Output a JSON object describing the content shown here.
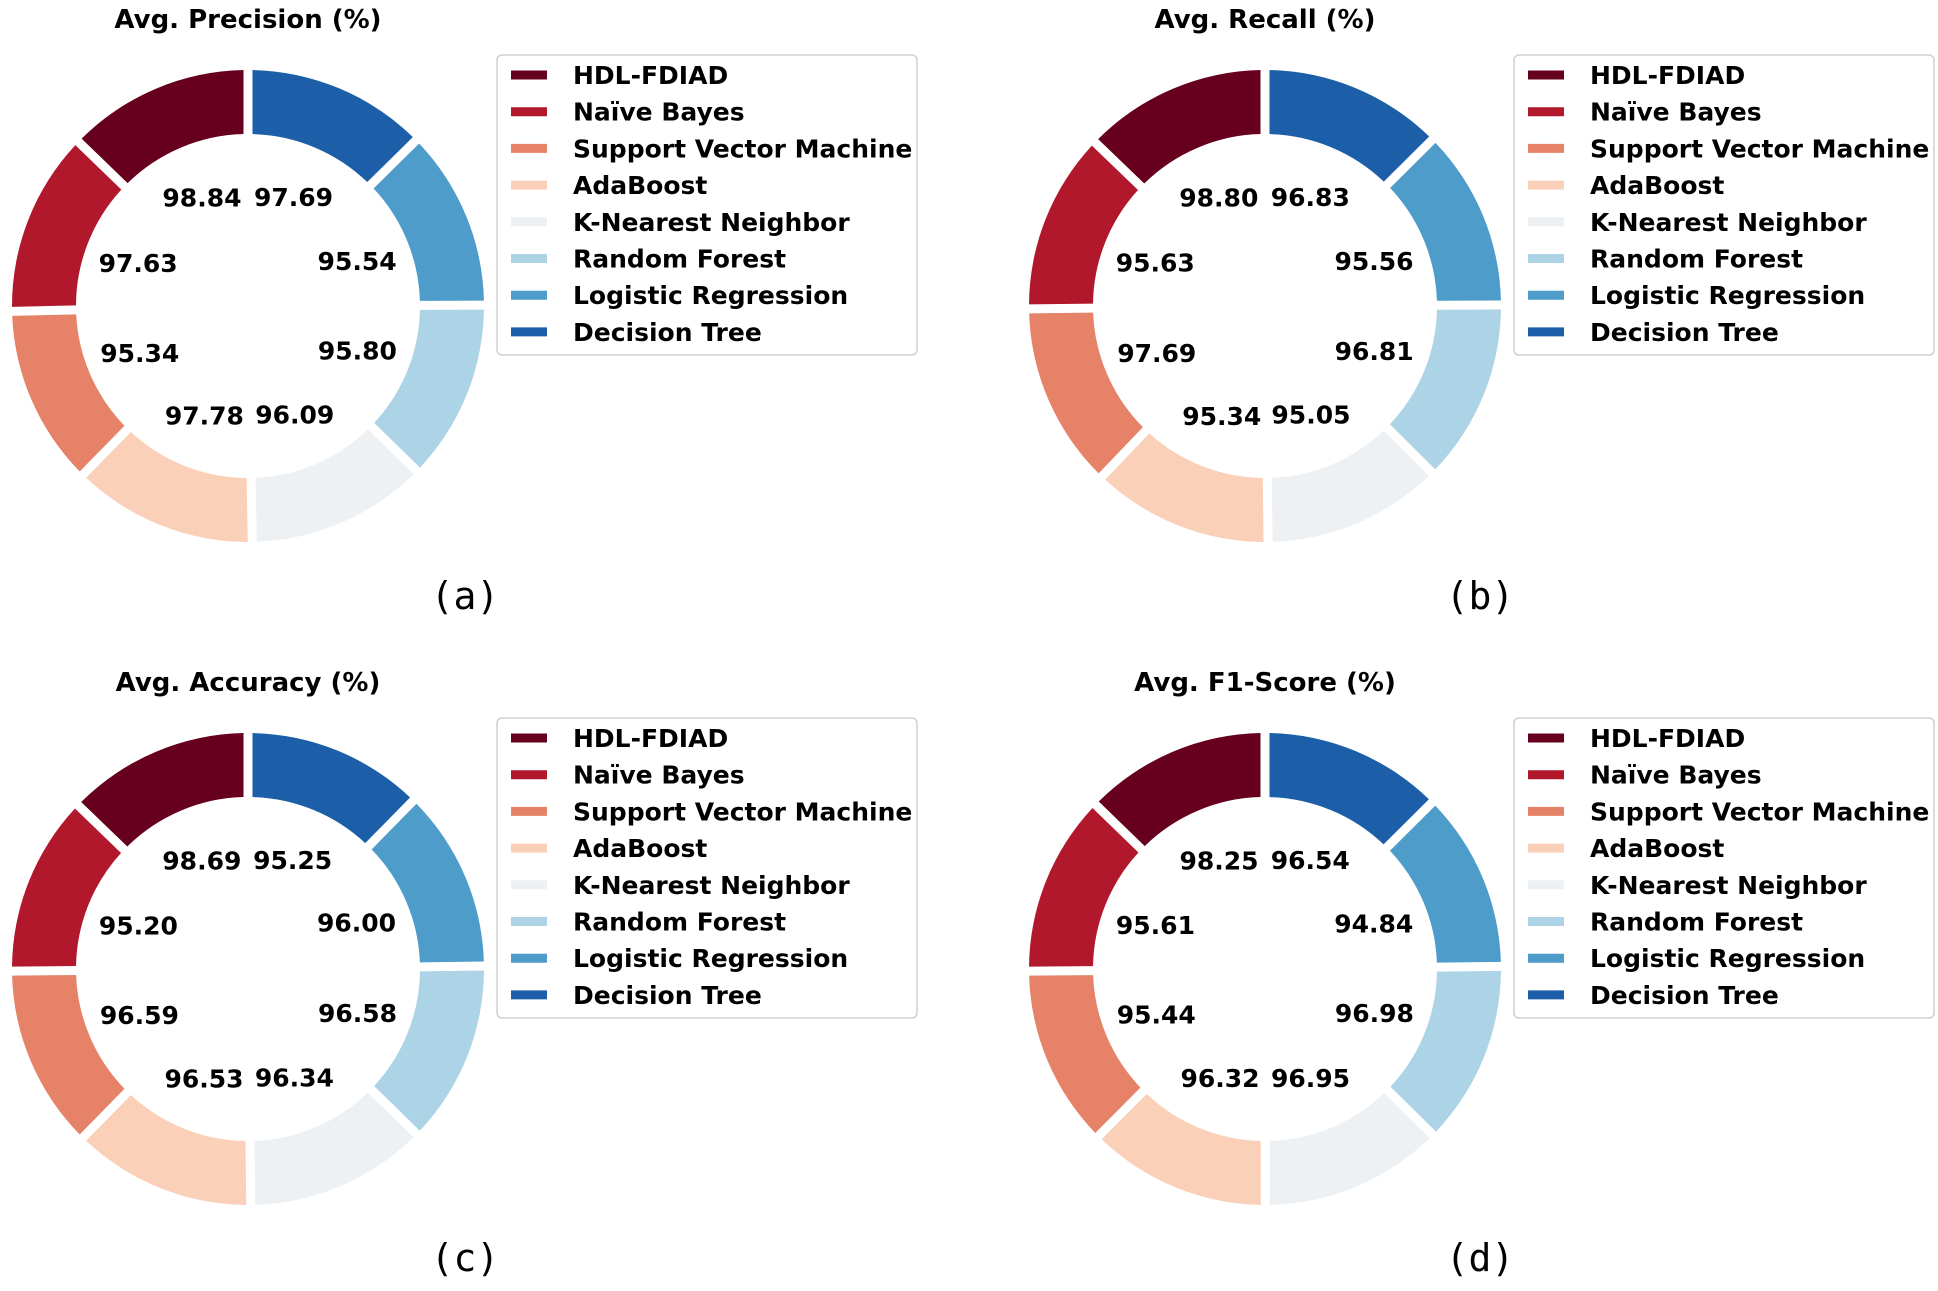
{
  "chart_data": [
    {
      "type": "pie",
      "title": "Avg. Precision (%)",
      "panel_label": "(a)",
      "categories": [
        "HDL-FDIAD",
        "Naïve Bayes",
        "Support Vector Machine",
        "AdaBoost",
        "K-Nearest Neighbor",
        "Random Forest",
        "Logistic Regression",
        "Decision Tree"
      ],
      "values": [
        98.84,
        97.63,
        95.34,
        97.78,
        96.09,
        95.8,
        95.54,
        97.69
      ],
      "legend_position": "right"
    },
    {
      "type": "pie",
      "title": "Avg. Recall (%)",
      "panel_label": "(b)",
      "categories": [
        "HDL-FDIAD",
        "Naïve Bayes",
        "Support Vector Machine",
        "AdaBoost",
        "K-Nearest Neighbor",
        "Random Forest",
        "Logistic Regression",
        "Decision Tree"
      ],
      "values": [
        98.8,
        95.63,
        97.69,
        95.34,
        95.05,
        96.81,
        95.56,
        96.83
      ],
      "legend_position": "right"
    },
    {
      "type": "pie",
      "title": "Avg. Accuracy (%)",
      "panel_label": "(c)",
      "categories": [
        "HDL-FDIAD",
        "Naïve Bayes",
        "Support Vector Machine",
        "AdaBoost",
        "K-Nearest Neighbor",
        "Random Forest",
        "Logistic Regression",
        "Decision Tree"
      ],
      "values": [
        98.69,
        95.2,
        96.59,
        96.53,
        96.34,
        96.58,
        96.0,
        95.25
      ],
      "legend_position": "right"
    },
    {
      "type": "pie",
      "title": "Avg. F1-Score (%)",
      "panel_label": "(d)",
      "categories": [
        "HDL-FDIAD",
        "Naïve Bayes",
        "Support Vector Machine",
        "AdaBoost",
        "K-Nearest Neighbor",
        "Random Forest",
        "Logistic Regression",
        "Decision Tree"
      ],
      "values": [
        98.25,
        95.61,
        95.44,
        96.32,
        96.95,
        96.98,
        94.84,
        96.54
      ],
      "legend_position": "right"
    }
  ],
  "colors": [
    "#67001f",
    "#b2182b",
    "#e58267",
    "#fbd0b9",
    "#eef1f4",
    "#add3e6",
    "#4e9cc9",
    "#1c5fa8"
  ]
}
